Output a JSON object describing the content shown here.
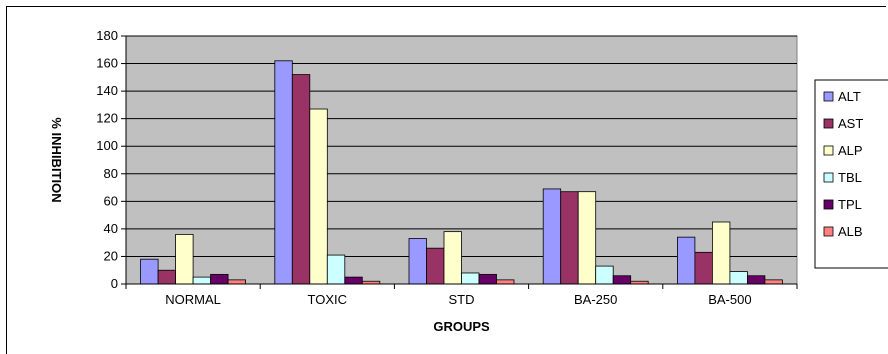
{
  "chart_data": {
    "type": "bar",
    "title": "",
    "xlabel": "GROUPS",
    "ylabel": "% INHIBITION",
    "ylim": [
      0,
      180
    ],
    "yticks": [
      0,
      20,
      40,
      60,
      80,
      100,
      120,
      140,
      160,
      180
    ],
    "grid": true,
    "legend_position": "right",
    "categories": [
      "NORMAL",
      "TOXIC",
      "STD",
      "BA-250",
      "BA-500"
    ],
    "series": [
      {
        "name": "ALT",
        "color": "#9999ff",
        "values": [
          18,
          162,
          33,
          69,
          34
        ]
      },
      {
        "name": "AST",
        "color": "#993366",
        "values": [
          10,
          152,
          26,
          67,
          23
        ]
      },
      {
        "name": "ALP",
        "color": "#ffffcc",
        "values": [
          36,
          127,
          38,
          67,
          45
        ]
      },
      {
        "name": "TBL",
        "color": "#ccffff",
        "values": [
          5,
          21,
          8,
          13,
          9
        ]
      },
      {
        "name": "TPL",
        "color": "#660066",
        "values": [
          7,
          5,
          7,
          6,
          6
        ]
      },
      {
        "name": "ALB",
        "color": "#ff8080",
        "values": [
          3,
          2,
          3,
          2,
          3
        ]
      }
    ]
  }
}
